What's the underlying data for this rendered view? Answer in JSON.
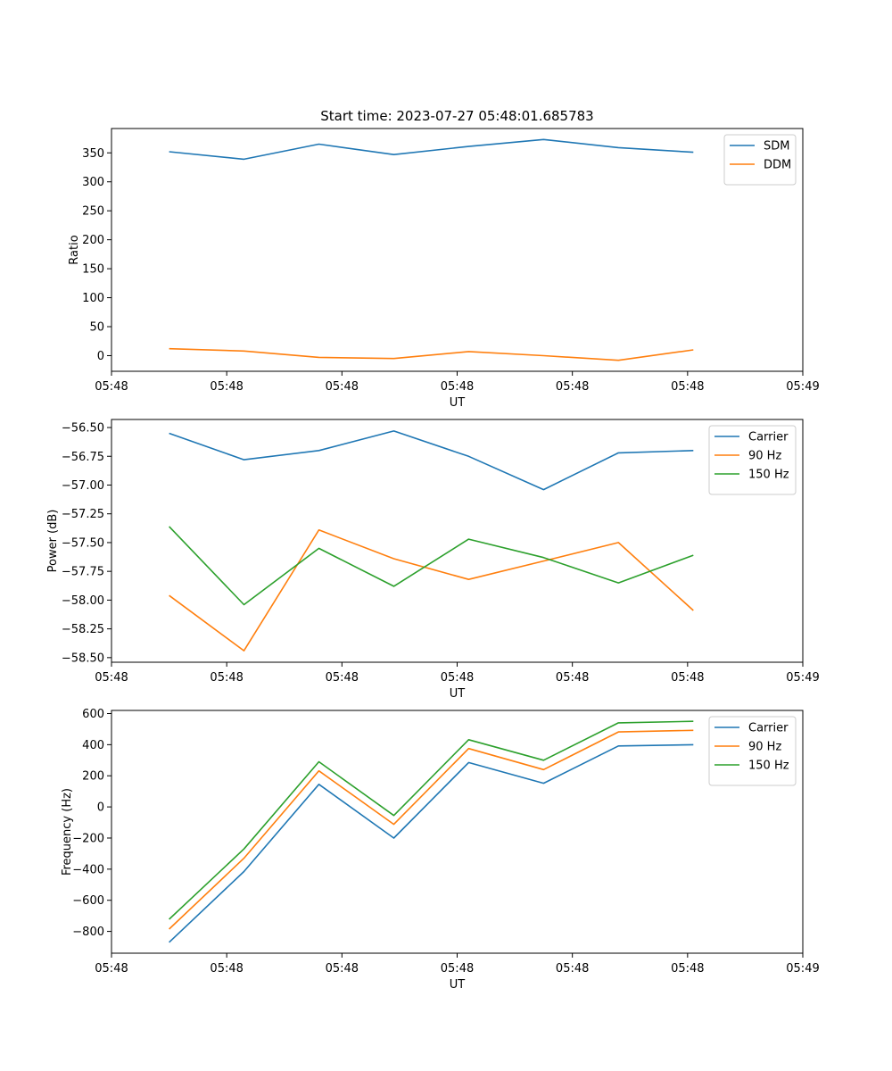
{
  "chart_data": [
    {
      "type": "line",
      "title": "Start time: 2023-07-27 05:48:01.685783",
      "xlabel": "UT",
      "ylabel": "Ratio",
      "x": [
        0.5,
        1.15,
        1.8,
        2.45,
        3.1,
        3.75,
        4.4,
        5.05
      ],
      "xlim": [
        0,
        6
      ],
      "ylim": [
        -27,
        392
      ],
      "xticks": [
        {
          "v": 0,
          "label": "05:48"
        },
        {
          "v": 1,
          "label": "05:48"
        },
        {
          "v": 2,
          "label": "05:48"
        },
        {
          "v": 3,
          "label": "05:48"
        },
        {
          "v": 4,
          "label": "05:48"
        },
        {
          "v": 5,
          "label": "05:48"
        },
        {
          "v": 6,
          "label": "05:49"
        }
      ],
      "yticks": [
        {
          "v": 0,
          "label": "0"
        },
        {
          "v": 50,
          "label": "50"
        },
        {
          "v": 100,
          "label": "100"
        },
        {
          "v": 150,
          "label": "150"
        },
        {
          "v": 200,
          "label": "200"
        },
        {
          "v": 250,
          "label": "250"
        },
        {
          "v": 300,
          "label": "300"
        },
        {
          "v": 350,
          "label": "350"
        }
      ],
      "legend": "top-right",
      "series": [
        {
          "name": "SDM",
          "color": "#1f77b4",
          "values": [
            352,
            339,
            365,
            347,
            361,
            373,
            359,
            351
          ]
        },
        {
          "name": "DDM",
          "color": "#ff7f0e",
          "values": [
            12,
            8,
            -3,
            -5,
            7,
            0,
            -8,
            10
          ]
        }
      ]
    },
    {
      "type": "line",
      "title": "",
      "xlabel": "UT",
      "ylabel": "Power (dB)",
      "x": [
        0.5,
        1.15,
        1.8,
        2.45,
        3.1,
        3.75,
        4.4,
        5.05
      ],
      "xlim": [
        0,
        6
      ],
      "ylim": [
        -58.54,
        -56.43
      ],
      "xticks": [
        {
          "v": 0,
          "label": "05:48"
        },
        {
          "v": 1,
          "label": "05:48"
        },
        {
          "v": 2,
          "label": "05:48"
        },
        {
          "v": 3,
          "label": "05:48"
        },
        {
          "v": 4,
          "label": "05:48"
        },
        {
          "v": 5,
          "label": "05:48"
        },
        {
          "v": 6,
          "label": "05:49"
        }
      ],
      "yticks": [
        {
          "v": -58.5,
          "label": "−58.50"
        },
        {
          "v": -58.25,
          "label": "−58.25"
        },
        {
          "v": -58.0,
          "label": "−58.00"
        },
        {
          "v": -57.75,
          "label": "−57.75"
        },
        {
          "v": -57.5,
          "label": "−57.50"
        },
        {
          "v": -57.25,
          "label": "−57.25"
        },
        {
          "v": -57.0,
          "label": "−57.00"
        },
        {
          "v": -56.75,
          "label": "−56.75"
        },
        {
          "v": -56.5,
          "label": "−56.50"
        }
      ],
      "legend": "top-right",
      "series": [
        {
          "name": "Carrier",
          "color": "#1f77b4",
          "values": [
            -56.55,
            -56.78,
            -56.7,
            -56.53,
            -56.75,
            -57.04,
            -56.72,
            -56.7
          ]
        },
        {
          "name": "90 Hz",
          "color": "#ff7f0e",
          "values": [
            -57.96,
            -58.44,
            -57.39,
            -57.64,
            -57.82,
            -57.66,
            -57.5,
            -58.09
          ]
        },
        {
          "name": "150 Hz",
          "color": "#2ca02c",
          "values": [
            -57.36,
            -58.04,
            -57.55,
            -57.88,
            -57.47,
            -57.63,
            -57.85,
            -57.61
          ]
        }
      ]
    },
    {
      "type": "line",
      "title": "",
      "xlabel": "UT",
      "ylabel": "Frequency (Hz)",
      "x": [
        0.5,
        1.15,
        1.8,
        2.45,
        3.1,
        3.75,
        4.4,
        5.05
      ],
      "xlim": [
        0,
        6
      ],
      "ylim": [
        -940,
        620
      ],
      "xticks": [
        {
          "v": 0,
          "label": "05:48"
        },
        {
          "v": 1,
          "label": "05:48"
        },
        {
          "v": 2,
          "label": "05:48"
        },
        {
          "v": 3,
          "label": "05:48"
        },
        {
          "v": 4,
          "label": "05:48"
        },
        {
          "v": 5,
          "label": "05:48"
        },
        {
          "v": 6,
          "label": "05:49"
        }
      ],
      "yticks": [
        {
          "v": -800,
          "label": "−800"
        },
        {
          "v": -600,
          "label": "−600"
        },
        {
          "v": -400,
          "label": "−400"
        },
        {
          "v": -200,
          "label": "−200"
        },
        {
          "v": 0,
          "label": "0"
        },
        {
          "v": 200,
          "label": "200"
        },
        {
          "v": 400,
          "label": "400"
        },
        {
          "v": 600,
          "label": "600"
        }
      ],
      "legend": "top-right",
      "series": [
        {
          "name": "Carrier",
          "color": "#1f77b4",
          "values": [
            -870,
            -415,
            145,
            -200,
            285,
            152,
            392,
            400
          ]
        },
        {
          "name": "90 Hz",
          "color": "#ff7f0e",
          "values": [
            -785,
            -330,
            232,
            -112,
            375,
            240,
            482,
            492
          ]
        },
        {
          "name": "150 Hz",
          "color": "#2ca02c",
          "values": [
            -722,
            -270,
            290,
            -55,
            432,
            300,
            540,
            550
          ]
        }
      ]
    }
  ]
}
